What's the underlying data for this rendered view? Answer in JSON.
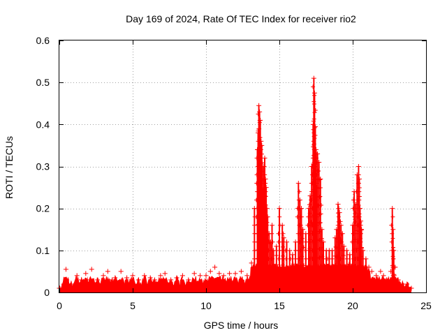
{
  "chart_data": {
    "type": "scatter",
    "title": "Day 169 of 2024, Rate Of TEC Index for receiver rio2",
    "xlabel": "GPS time / hours",
    "ylabel": "ROTI / TECUs",
    "xlim": [
      0,
      25
    ],
    "ylim": [
      0,
      0.6
    ],
    "x_ticks": [
      0,
      5,
      10,
      15,
      20,
      25
    ],
    "y_ticks": [
      0,
      0.1,
      0.2,
      0.3,
      0.4,
      0.5,
      0.6
    ],
    "x_tick_labels": [
      "0",
      "5",
      "10",
      "15",
      "20",
      "25"
    ],
    "y_tick_labels": [
      "0",
      "0.1",
      "0.2",
      "0.3",
      "0.4",
      "0.5",
      "0.6"
    ],
    "grid": true,
    "marker": "+",
    "series": [
      {
        "name": "ROTI",
        "color": "#ff0000",
        "x": [
          0.0,
          0.3,
          0.45,
          0.5,
          0.8,
          1.2,
          1.5,
          1.8,
          2.1,
          2.2,
          2.6,
          3.0,
          3.3,
          3.6,
          3.8,
          4.2,
          4.6,
          4.9,
          5.0,
          5.4,
          5.8,
          6.2,
          6.5,
          6.9,
          7.2,
          7.6,
          8.0,
          8.4,
          8.8,
          9.2,
          9.6,
          10.0,
          10.3,
          10.6,
          10.9,
          11.2,
          11.6,
          12.0,
          12.4,
          12.8,
          13.1,
          13.3,
          13.5,
          13.55,
          13.6,
          13.65,
          13.7,
          13.75,
          13.8,
          13.85,
          13.9,
          13.95,
          14.0,
          14.05,
          14.1,
          14.15,
          14.2,
          14.3,
          14.4,
          14.5,
          14.6,
          14.8,
          15.0,
          15.2,
          15.3,
          15.5,
          15.7,
          15.9,
          16.1,
          16.3,
          16.4,
          16.5,
          16.6,
          16.8,
          17.0,
          17.1,
          17.2,
          17.3,
          17.35,
          17.4,
          17.45,
          17.5,
          17.55,
          17.6,
          17.7,
          17.8,
          17.9,
          18.0,
          18.2,
          18.4,
          18.6,
          18.8,
          18.9,
          19.0,
          19.05,
          19.1,
          19.2,
          19.3,
          19.4,
          19.6,
          19.8,
          20.0,
          20.1,
          20.2,
          20.3,
          20.4,
          20.45,
          20.5,
          20.55,
          20.6,
          20.7,
          20.9,
          21.1,
          21.3,
          21.6,
          21.9,
          22.1,
          22.3,
          22.6,
          22.7,
          22.75,
          22.8,
          22.9,
          23.1,
          23.4,
          23.7,
          24.0
        ],
        "y": [
          0.01,
          0.02,
          0.055,
          0.03,
          0.02,
          0.04,
          0.03,
          0.045,
          0.03,
          0.055,
          0.03,
          0.04,
          0.05,
          0.03,
          0.035,
          0.05,
          0.035,
          0.03,
          0.04,
          0.03,
          0.04,
          0.035,
          0.03,
          0.04,
          0.045,
          0.03,
          0.035,
          0.04,
          0.03,
          0.045,
          0.04,
          0.04,
          0.05,
          0.06,
          0.045,
          0.04,
          0.045,
          0.045,
          0.05,
          0.04,
          0.07,
          0.2,
          0.34,
          0.38,
          0.445,
          0.43,
          0.41,
          0.36,
          0.35,
          0.3,
          0.24,
          0.3,
          0.32,
          0.27,
          0.25,
          0.2,
          0.18,
          0.14,
          0.12,
          0.16,
          0.1,
          0.11,
          0.2,
          0.16,
          0.13,
          0.12,
          0.1,
          0.09,
          0.12,
          0.26,
          0.22,
          0.2,
          0.15,
          0.14,
          0.2,
          0.23,
          0.3,
          0.4,
          0.51,
          0.475,
          0.395,
          0.34,
          0.25,
          0.33,
          0.31,
          0.27,
          0.15,
          0.12,
          0.1,
          0.1,
          0.1,
          0.13,
          0.15,
          0.21,
          0.2,
          0.19,
          0.16,
          0.14,
          0.11,
          0.1,
          0.09,
          0.16,
          0.24,
          0.21,
          0.28,
          0.3,
          0.27,
          0.2,
          0.17,
          0.15,
          0.1,
          0.08,
          0.06,
          0.05,
          0.04,
          0.05,
          0.04,
          0.03,
          0.05,
          0.2,
          0.15,
          0.1,
          0.06,
          0.03,
          0.02,
          0.02,
          0.01
        ]
      }
    ]
  }
}
